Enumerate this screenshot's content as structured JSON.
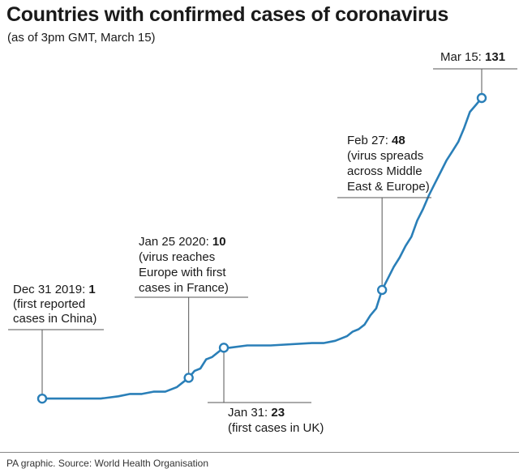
{
  "chart_data": {
    "type": "line",
    "title": "Countries with confirmed cases of coronavirus",
    "subtitle": "(as of 3pm GMT, March 15)",
    "source": "PA graphic. Source: World Health Organisation",
    "colors": {
      "line": "#2a7fb8",
      "text": "#1a1a1a",
      "rule": "#555555"
    },
    "grid": false,
    "x": [
      "2019-12-31",
      "2020-01-07",
      "2020-01-10",
      "2020-01-13",
      "2020-01-15",
      "2020-01-17",
      "2020-01-19",
      "2020-01-21",
      "2020-01-23",
      "2020-01-24",
      "2020-01-25",
      "2020-01-26",
      "2020-01-27",
      "2020-01-28",
      "2020-01-29",
      "2020-01-30",
      "2020-01-31",
      "2020-02-01",
      "2020-02-04",
      "2020-02-08",
      "2020-02-15",
      "2020-02-17",
      "2020-02-19",
      "2020-02-20",
      "2020-02-21",
      "2020-02-22",
      "2020-02-23",
      "2020-02-24",
      "2020-02-25",
      "2020-02-26",
      "2020-02-27",
      "2020-02-28",
      "2020-02-29",
      "2020-03-01",
      "2020-03-02",
      "2020-03-03",
      "2020-03-04",
      "2020-03-05",
      "2020-03-06",
      "2020-03-07",
      "2020-03-08",
      "2020-03-09",
      "2020-03-10",
      "2020-03-11",
      "2020-03-12",
      "2020-03-13",
      "2020-03-14",
      "2020-03-15"
    ],
    "series": [
      {
        "values": [
          1,
          1,
          1,
          2,
          3,
          3,
          4,
          4,
          6,
          8,
          10,
          13,
          14,
          18,
          19,
          21,
          23,
          23,
          24,
          24,
          25,
          25,
          26,
          27,
          28,
          30,
          31,
          33,
          37,
          40,
          48,
          53,
          58,
          62,
          67,
          71,
          78,
          83,
          89,
          94,
          99,
          104,
          108,
          112,
          118,
          125,
          128,
          131
        ]
      }
    ],
    "ylim": [
      0,
      131
    ],
    "annotations": [
      {
        "date": "2019-12-31",
        "label": "Dec 31 2019:",
        "value": "1",
        "notes": [
          "(first reported",
          "cases in China)"
        ]
      },
      {
        "date": "2020-01-25",
        "label": "Jan 25 2020:",
        "value": "10",
        "notes": [
          "(virus reaches",
          "Europe with first",
          "cases in France)"
        ]
      },
      {
        "date": "2020-01-31",
        "label": "Jan 31:",
        "value": "23",
        "notes": [
          "(first cases in UK)"
        ]
      },
      {
        "date": "2020-02-27",
        "label": "Feb 27:",
        "value": "48",
        "notes": [
          "(virus spreads",
          "across Middle",
          "East & Europe)"
        ]
      },
      {
        "date": "2020-03-15",
        "label": "Mar 15:",
        "value": "131",
        "notes": []
      }
    ]
  }
}
